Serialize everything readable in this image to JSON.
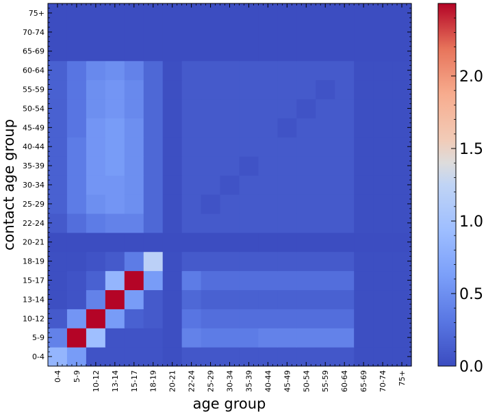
{
  "chart_data": {
    "type": "heatmap",
    "title": "",
    "xlabel": "age group",
    "ylabel": "contact age group",
    "x_categories": [
      "0-4",
      "5-9",
      "10-12",
      "13-14",
      "15-17",
      "18-19",
      "20-21",
      "22-24",
      "25-29",
      "30-34",
      "35-39",
      "40-44",
      "45-49",
      "50-54",
      "55-59",
      "60-64",
      "65-69",
      "70-74",
      "75+"
    ],
    "y_categories": [
      "0-4",
      "5-9",
      "10-12",
      "13-14",
      "15-17",
      "18-19",
      "20-21",
      "22-24",
      "25-29",
      "30-34",
      "35-39",
      "40-44",
      "45-49",
      "50-54",
      "55-59",
      "60-64",
      "65-69",
      "70-74",
      "75+"
    ],
    "colorbar": {
      "colormap": "coolwarm",
      "vmin": 0.0,
      "vmax": 2.5,
      "ticks": [
        0.0,
        0.5,
        1.0,
        1.5,
        2.0
      ],
      "tick_labels": [
        "0.0",
        "0.5",
        "1.0",
        "1.5",
        "2.0"
      ]
    },
    "values": [
      [
        0.85,
        0.6,
        0.05,
        0.05,
        0.05,
        0.05,
        0.02,
        0.08,
        0.08,
        0.08,
        0.08,
        0.08,
        0.08,
        0.08,
        0.08,
        0.08,
        0.02,
        0.02,
        0.02
      ],
      [
        0.4,
        2.5,
        0.95,
        0.05,
        0.05,
        0.05,
        0.02,
        0.4,
        0.35,
        0.35,
        0.35,
        0.4,
        0.4,
        0.4,
        0.4,
        0.4,
        0.02,
        0.02,
        0.02
      ],
      [
        0.1,
        0.55,
        2.5,
        0.6,
        0.15,
        0.1,
        0.02,
        0.3,
        0.25,
        0.25,
        0.25,
        0.25,
        0.25,
        0.25,
        0.25,
        0.25,
        0.02,
        0.02,
        0.02
      ],
      [
        0.02,
        0.05,
        0.4,
        2.5,
        0.6,
        0.1,
        0.02,
        0.2,
        0.15,
        0.15,
        0.15,
        0.15,
        0.15,
        0.15,
        0.15,
        0.15,
        0.02,
        0.02,
        0.02
      ],
      [
        0.02,
        0.05,
        0.15,
        0.85,
        2.5,
        0.6,
        0.02,
        0.35,
        0.25,
        0.25,
        0.25,
        0.25,
        0.25,
        0.25,
        0.25,
        0.25,
        0.02,
        0.02,
        0.02
      ],
      [
        0.02,
        0.02,
        0.05,
        0.1,
        0.35,
        1.2,
        0.02,
        0.1,
        0.1,
        0.1,
        0.1,
        0.1,
        0.1,
        0.1,
        0.1,
        0.1,
        0.02,
        0.02,
        0.02
      ],
      [
        0.01,
        0.01,
        0.01,
        0.01,
        0.01,
        0.01,
        0.01,
        0.01,
        0.01,
        0.01,
        0.01,
        0.01,
        0.01,
        0.01,
        0.01,
        0.01,
        0.01,
        0.01,
        0.01
      ],
      [
        0.1,
        0.25,
        0.35,
        0.4,
        0.4,
        0.2,
        0.02,
        0.1,
        0.1,
        0.1,
        0.1,
        0.1,
        0.1,
        0.1,
        0.1,
        0.1,
        0.02,
        0.02,
        0.02
      ],
      [
        0.15,
        0.35,
        0.5,
        0.55,
        0.5,
        0.2,
        0.02,
        0.1,
        0.05,
        0.1,
        0.1,
        0.1,
        0.1,
        0.1,
        0.1,
        0.1,
        0.02,
        0.02,
        0.02
      ],
      [
        0.15,
        0.35,
        0.55,
        0.55,
        0.5,
        0.2,
        0.02,
        0.1,
        0.1,
        0.05,
        0.1,
        0.1,
        0.1,
        0.1,
        0.1,
        0.1,
        0.02,
        0.02,
        0.02
      ],
      [
        0.15,
        0.35,
        0.55,
        0.6,
        0.5,
        0.2,
        0.02,
        0.1,
        0.1,
        0.1,
        0.05,
        0.1,
        0.1,
        0.1,
        0.1,
        0.1,
        0.02,
        0.02,
        0.02
      ],
      [
        0.15,
        0.35,
        0.55,
        0.6,
        0.5,
        0.2,
        0.02,
        0.1,
        0.1,
        0.1,
        0.1,
        0.1,
        0.1,
        0.1,
        0.1,
        0.1,
        0.02,
        0.02,
        0.02
      ],
      [
        0.15,
        0.3,
        0.55,
        0.6,
        0.5,
        0.2,
        0.02,
        0.1,
        0.1,
        0.1,
        0.1,
        0.1,
        0.05,
        0.1,
        0.1,
        0.1,
        0.02,
        0.02,
        0.02
      ],
      [
        0.15,
        0.3,
        0.5,
        0.55,
        0.45,
        0.2,
        0.02,
        0.1,
        0.1,
        0.1,
        0.1,
        0.1,
        0.1,
        0.05,
        0.1,
        0.1,
        0.02,
        0.02,
        0.02
      ],
      [
        0.15,
        0.3,
        0.5,
        0.55,
        0.45,
        0.2,
        0.02,
        0.1,
        0.1,
        0.1,
        0.1,
        0.1,
        0.1,
        0.1,
        0.05,
        0.1,
        0.02,
        0.02,
        0.02
      ],
      [
        0.15,
        0.3,
        0.45,
        0.5,
        0.4,
        0.2,
        0.02,
        0.1,
        0.1,
        0.1,
        0.1,
        0.1,
        0.1,
        0.1,
        0.1,
        0.1,
        0.02,
        0.02,
        0.02
      ],
      [
        0.01,
        0.01,
        0.01,
        0.01,
        0.01,
        0.01,
        0.01,
        0.01,
        0.01,
        0.01,
        0.01,
        0.01,
        0.01,
        0.01,
        0.01,
        0.01,
        0.01,
        0.01,
        0.01
      ],
      [
        0.01,
        0.01,
        0.01,
        0.01,
        0.01,
        0.01,
        0.01,
        0.01,
        0.01,
        0.01,
        0.01,
        0.01,
        0.01,
        0.01,
        0.01,
        0.01,
        0.01,
        0.01,
        0.01
      ],
      [
        0.01,
        0.01,
        0.01,
        0.01,
        0.01,
        0.01,
        0.01,
        0.01,
        0.01,
        0.01,
        0.01,
        0.01,
        0.01,
        0.01,
        0.01,
        0.01,
        0.01,
        0.01,
        0.01
      ]
    ]
  }
}
